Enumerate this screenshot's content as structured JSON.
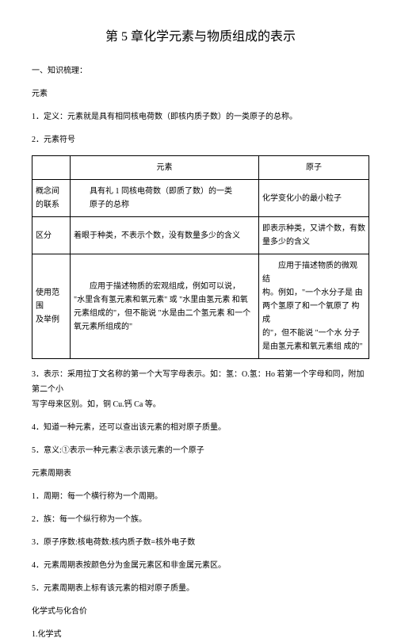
{
  "title": "第 5 章化学元素与物质组成的表示",
  "p1": "一、知识梳理：",
  "p2": "元素",
  "p3": "1．定义：元素就是具有相同核电荷数（即核内质子数）的一类原子的总称。",
  "p4": "2．元素符号",
  "table": {
    "h1": "元素",
    "h2": "原子",
    "r1c0a": "概念间",
    "r1c0b": "的联系",
    "r1c1a": "具有礼 1 同核电荷数（即质了数）的一类",
    "r1c1b": "原子的总称",
    "r1c2": "化学变化小的最小粒子",
    "r2c0": "区分",
    "r2c1": "着眼于种类，不表示个数，没有数量多少的含义",
    "r2c2": "即表示种类，又讲个数，有数量多少的含义",
    "r3c0a": "使用范围",
    "r3c0b": "及举例",
    "r3c1a": "应用于描述物质的宏观组成，例如可以说，",
    "r3c1b": "\"水里含有氢元素和氧元素\" 或 \"水里由氢元素 和氧",
    "r3c1c": "元素组成的\"，但不能说 \"水是由二个氢元素 和一个",
    "r3c1d": "氧元素所组成的\"",
    "r3c2a": "应用于描述物质的微观  结",
    "r3c2b": "构。例如，\"一个水分子是  由",
    "r3c2c": "两个氢原了和一个氧原了 构成",
    "r3c2d": "的\"，但不能说 \"一个水  分子",
    "r3c2e": "是由氢元素和氧元素组  成的\""
  },
  "p5a": "3．表示：采用拉丁文名称的第一个大写字母表示。如：氢：O.氢：Ho 若第一个字母和同，附加第二个小",
  "p5b": "写字母来区别。如，铜 Cu.钙 Ca 等。",
  "p6": "4．知道一种元素，还可以查出该元素的相对原子质量。",
  "p7": "5．意义:①表示一种元素②表示该元素的一个原子",
  "p8": "元素周期表",
  "p9": "1．周期：每一个横行称为一个周期。",
  "p10": "2．族：每一个纵行称为一个族。",
  "p11": "3．原子序数:核电荷数:核内质子数=核外电子数",
  "p12": "4．元素周期表按颜色分为金属元素区和非金属元素区。",
  "p13": "5．元素周期表上标有该元素的相对原子质量。",
  "p14": "化学式与化合价",
  "p15": "1.化学式"
}
